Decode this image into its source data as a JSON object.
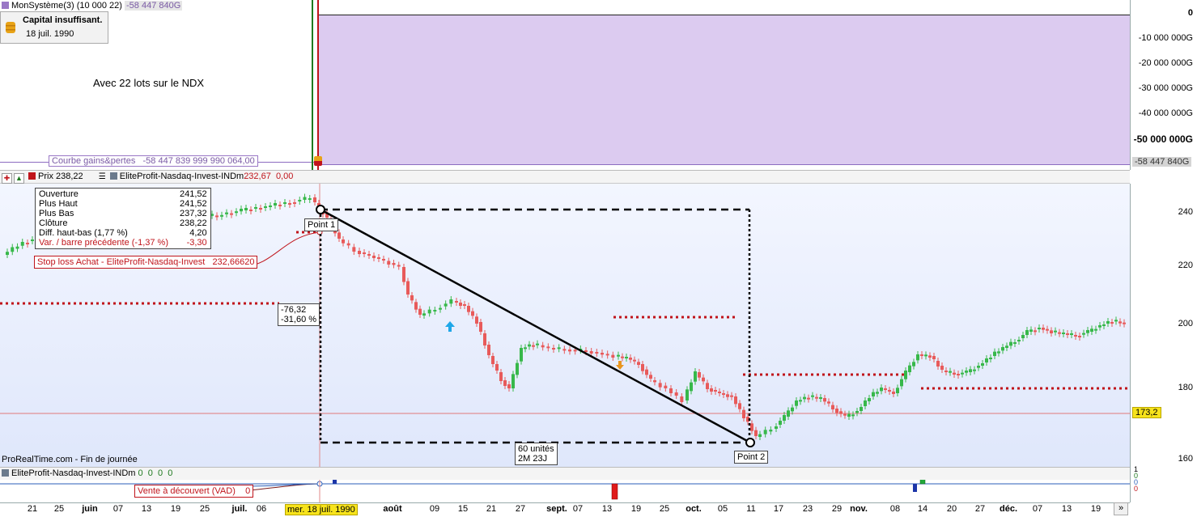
{
  "equity_pane": {
    "header_name": "MonSystème(3) (10 000 22)",
    "header_value": "-58 447 840G",
    "alert_title": "Capital insuffisant.",
    "alert_date": "18 juil. 1990",
    "annotation": "Avec 22 lots sur le NDX",
    "curve_label": "Courbe gains&pertes",
    "curve_value": "-58 447 839 999 990 064,00",
    "y_axis": [
      "0",
      "-10 000 000G",
      "-20 000 000G",
      "-30 000 000G",
      "-40 000 000G",
      "-50 000 000G"
    ],
    "last_tag": "-58 447 840G",
    "fill_color": "#dccbf0"
  },
  "price_pane": {
    "price_label": "Prix 238,22",
    "indicator_name": "EliteProfit-Nasdaq-Invest-INDm",
    "indicator_values": "232,67  0,00",
    "ohlc": [
      {
        "label": "Ouverture",
        "value": "241,52"
      },
      {
        "label": "Plus Haut",
        "value": "241,52"
      },
      {
        "label": "Plus Bas",
        "value": "237,32"
      },
      {
        "label": "Clôture",
        "value": "238,22"
      },
      {
        "label": "Diff. haut-bas (1,77 %)",
        "value": "4,20"
      },
      {
        "label": "Var. / barre précédente (-1,37 %)",
        "value": "-3,30"
      }
    ],
    "stop_loss_label": "Stop loss Achat - EliteProfit-Nasdaq-Invest",
    "stop_loss_value": "232,66620",
    "measure_change": "-76,32",
    "measure_pct": "-31,60 %",
    "duration_units": "60 unités",
    "duration_time": "2M 23J",
    "point1": "Point 1",
    "point2": "Point 2",
    "footer": "ProRealTime.com - Fin de journée",
    "y_axis": [
      "240",
      "220",
      "200",
      "180",
      "160"
    ],
    "current_tag": "173,2",
    "up_color": "#37b84a",
    "down_color": "#e85a5a"
  },
  "indicator_pane": {
    "header": "EliteProfit-Nasdaq-Invest-INDm",
    "header_values": "0  0  0  0",
    "vad_label": "Vente à découvert (VAD)",
    "vad_value": "0",
    "y_axis": [
      "1",
      "0",
      "0",
      "0"
    ]
  },
  "x_axis": {
    "labels": [
      {
        "t": "21",
        "b": false
      },
      {
        "t": "25",
        "b": false
      },
      {
        "t": "juin",
        "b": true
      },
      {
        "t": "07",
        "b": false
      },
      {
        "t": "13",
        "b": false
      },
      {
        "t": "19",
        "b": false
      },
      {
        "t": "25",
        "b": false
      },
      {
        "t": "juil.",
        "b": true
      },
      {
        "t": "06",
        "b": false
      },
      {
        "t": "août",
        "b": true
      },
      {
        "t": "09",
        "b": false
      },
      {
        "t": "15",
        "b": false
      },
      {
        "t": "21",
        "b": false
      },
      {
        "t": "27",
        "b": false
      },
      {
        "t": "sept.",
        "b": true
      },
      {
        "t": "07",
        "b": false
      },
      {
        "t": "13",
        "b": false
      },
      {
        "t": "19",
        "b": false
      },
      {
        "t": "25",
        "b": false
      },
      {
        "t": "oct.",
        "b": true
      },
      {
        "t": "05",
        "b": false
      },
      {
        "t": "11",
        "b": false
      },
      {
        "t": "17",
        "b": false
      },
      {
        "t": "23",
        "b": false
      },
      {
        "t": "29",
        "b": false
      },
      {
        "t": "nov.",
        "b": true
      },
      {
        "t": "08",
        "b": false
      },
      {
        "t": "14",
        "b": false
      },
      {
        "t": "20",
        "b": false
      },
      {
        "t": "27",
        "b": false
      },
      {
        "t": "déc.",
        "b": true
      },
      {
        "t": "07",
        "b": false
      },
      {
        "t": "13",
        "b": false
      },
      {
        "t": "19",
        "b": false
      }
    ],
    "cursor_date": "mer. 18 juil. 1990",
    "scroll_label": "»"
  }
}
